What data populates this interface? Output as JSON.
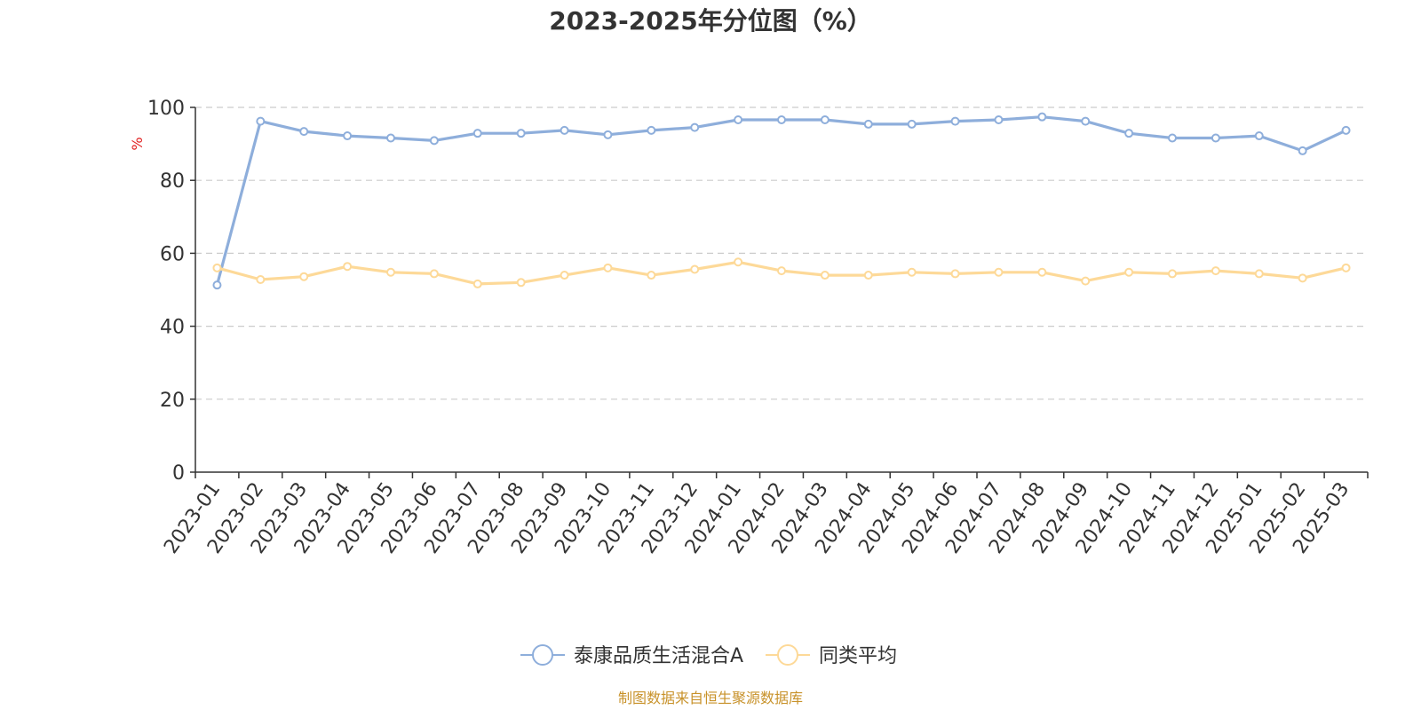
{
  "chart_data": {
    "type": "line",
    "title": "2023-2025年分位图（%）",
    "ylabel": "%",
    "xlabel": "",
    "ylim": [
      0,
      100
    ],
    "yticks": [
      0,
      20,
      40,
      60,
      80,
      100
    ],
    "grid": "horizontal dashed",
    "legend_position": "bottom",
    "categories": [
      "2023-01",
      "2023-02",
      "2023-03",
      "2023-04",
      "2023-05",
      "2023-06",
      "2023-07",
      "2023-08",
      "2023-09",
      "2023-10",
      "2023-11",
      "2023-12",
      "2024-01",
      "2024-02",
      "2024-03",
      "2024-04",
      "2024-05",
      "2024-06",
      "2024-07",
      "2024-08",
      "2024-09",
      "2024-10",
      "2024-11",
      "2024-12",
      "2025-01",
      "2025-02",
      "2025-03"
    ],
    "series": [
      {
        "name": "泰康品质生活混合A",
        "color": "#8eaedb",
        "values": [
          51.3,
          96.2,
          93.4,
          92.2,
          91.6,
          90.9,
          92.9,
          92.9,
          93.7,
          92.5,
          93.7,
          94.5,
          96.6,
          96.6,
          96.6,
          95.4,
          95.4,
          96.2,
          96.6,
          97.4,
          96.2,
          92.9,
          91.6,
          91.6,
          92.2,
          88.1,
          93.7
        ]
      },
      {
        "name": "同类平均",
        "color": "#fdd998",
        "values": [
          56.0,
          52.8,
          53.6,
          56.4,
          54.8,
          54.4,
          51.6,
          52.0,
          54.0,
          56.0,
          54.0,
          55.6,
          57.6,
          55.2,
          54.0,
          54.0,
          54.8,
          54.4,
          54.8,
          54.8,
          52.4,
          54.8,
          54.4,
          55.2,
          54.4,
          53.2,
          56.0
        ]
      }
    ],
    "source": "制图数据来自恒生聚源数据库"
  }
}
